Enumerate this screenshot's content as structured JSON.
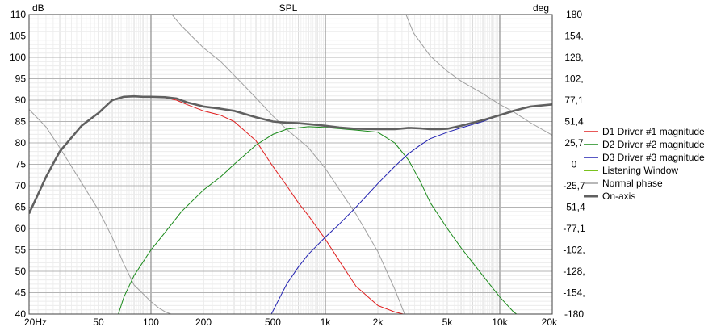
{
  "chart_data": {
    "type": "line",
    "title": "SPL",
    "ylabel_left": "dB",
    "ylabel_right": "deg",
    "x_scale": "log",
    "xlim": [
      20,
      20000
    ],
    "ylim_left": [
      40,
      110
    ],
    "ylim_right": [
      -180,
      180
    ],
    "grid": true,
    "x_tick_labels": [
      {
        "v": 20,
        "t": "20Hz"
      },
      {
        "v": 50,
        "t": "50"
      },
      {
        "v": 100,
        "t": "100"
      },
      {
        "v": 200,
        "t": "200"
      },
      {
        "v": 500,
        "t": "500"
      },
      {
        "v": 1000,
        "t": "1k"
      },
      {
        "v": 2000,
        "t": "2k"
      },
      {
        "v": 5000,
        "t": "5k"
      },
      {
        "v": 10000,
        "t": "10k"
      },
      {
        "v": 20000,
        "t": "20k"
      }
    ],
    "y_left_tick_labels": [
      "40",
      "45",
      "50",
      "55",
      "60",
      "65",
      "70",
      "75",
      "80",
      "85",
      "90",
      "95",
      "100",
      "105",
      "110"
    ],
    "y_right_tick_labels": [
      "-180",
      "-154,",
      "-128,",
      "-102,",
      "-77,1",
      "-51,4",
      "-25,7",
      "0",
      "25,7",
      "51,4",
      "77,1",
      "102,",
      "128,",
      "154,",
      "180"
    ],
    "legend_position": "right",
    "series": [
      {
        "name": "D1 Driver #1 magnitude",
        "color": "#e02020",
        "axis": "left",
        "x": [
          20,
          25,
          30,
          40,
          50,
          60,
          70,
          80,
          90,
          100,
          120,
          140,
          160,
          200,
          250,
          300,
          400,
          500,
          600,
          700,
          800,
          1000,
          1200,
          1500,
          2000,
          2500,
          2800
        ],
        "y": [
          63.5,
          72,
          78,
          84,
          87,
          90,
          90.8,
          90.9,
          90.8,
          90.8,
          90.6,
          90,
          89,
          87.5,
          86.5,
          85,
          80.5,
          74.5,
          70,
          66,
          63,
          57.5,
          52.5,
          46.5,
          42,
          40.5,
          40
        ]
      },
      {
        "name": "D2 Driver #2 magnitude",
        "color": "#1a8a1a",
        "axis": "left",
        "x": [
          65,
          70,
          80,
          100,
          120,
          150,
          200,
          250,
          300,
          400,
          500,
          600,
          800,
          1000,
          1500,
          2000,
          2500,
          3000,
          3500,
          4000,
          5000,
          6000,
          8000,
          10000,
          12000,
          12500
        ],
        "y": [
          40,
          44,
          49,
          55,
          59,
          64,
          69,
          72,
          75,
          79.5,
          82,
          83.2,
          83.8,
          83.6,
          83,
          82.5,
          80,
          76,
          71,
          66,
          60,
          55.5,
          49,
          44,
          40.5,
          40
        ]
      },
      {
        "name": "D3 Driver #3 magnitude",
        "color": "#2020b0",
        "axis": "left",
        "x": [
          490,
          550,
          600,
          700,
          800,
          1000,
          1200,
          1500,
          2000,
          2500,
          3000,
          3500,
          4000,
          5000,
          6000,
          8000,
          10000,
          12000,
          15000,
          20000
        ],
        "y": [
          40,
          44,
          47,
          51,
          54,
          58,
          61,
          65,
          70.5,
          74.5,
          77.5,
          79.5,
          81,
          82.5,
          83.5,
          85,
          86.5,
          87.5,
          88.5,
          89
        ]
      },
      {
        "name": "Listening Window",
        "color": "#7ac21e",
        "axis": "left",
        "x": [],
        "y": []
      },
      {
        "name": "Normal phase",
        "color": "#a0a0a0",
        "axis": "right",
        "segments": [
          {
            "x": [
              20,
              25,
              30,
              40,
              50,
              60,
              70,
              80,
              100,
              110,
              120,
              130
            ],
            "y": [
              66,
              45,
              20,
              -22,
              -55,
              -88,
              -120,
              -145,
              -165,
              -172,
              -177,
              -180
            ]
          },
          {
            "x": [
              132,
              150,
              200,
              250,
              300,
              400,
              500,
              600,
              800,
              1000,
              1200,
              1500,
              2000,
              2500,
              2850
            ],
            "y": [
              180,
              166,
              140,
              124,
              107,
              80,
              58,
              42,
              20,
              -5,
              -30,
              -60,
              -105,
              -150,
              -180
            ]
          },
          {
            "x": [
              2900,
              3200,
              4000,
              5000,
              6000,
              8000,
              10000,
              12000,
              15000,
              20000
            ],
            "y": [
              180,
              158,
              130,
              112,
              100,
              85,
              72,
              63,
              50,
              35
            ]
          }
        ]
      },
      {
        "name": "On-axis",
        "color": "#606060",
        "axis": "left",
        "x": [
          20,
          25,
          30,
          40,
          50,
          60,
          70,
          80,
          90,
          100,
          120,
          140,
          160,
          200,
          250,
          300,
          400,
          500,
          600,
          700,
          800,
          1000,
          1200,
          1500,
          2000,
          2500,
          3000,
          3500,
          4000,
          4500,
          5000,
          6000,
          8000,
          10000,
          12000,
          15000,
          20000
        ],
        "y": [
          63.5,
          72,
          78,
          84,
          87,
          90,
          90.8,
          90.9,
          90.8,
          90.8,
          90.7,
          90.4,
          89.5,
          88.5,
          88,
          87.5,
          86,
          85,
          84.7,
          84.6,
          84.4,
          84,
          83.6,
          83.3,
          83.2,
          83.2,
          83.5,
          83.4,
          83.2,
          83.2,
          83.3,
          84,
          85.3,
          86.5,
          87.5,
          88.5,
          89
        ]
      }
    ]
  }
}
